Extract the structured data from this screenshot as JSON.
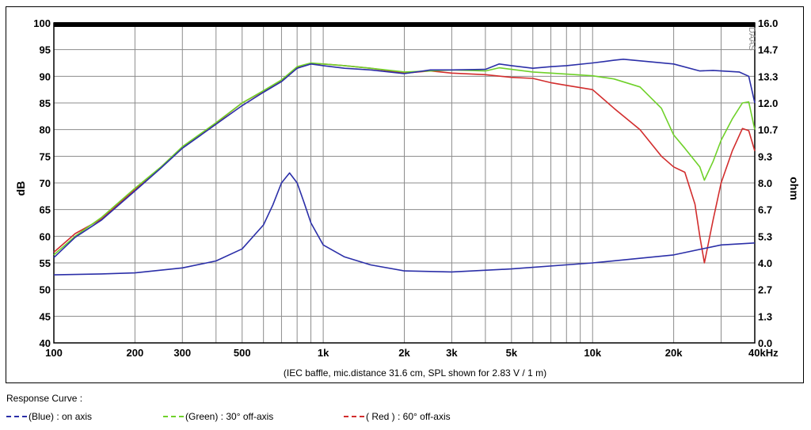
{
  "chart_data": {
    "type": "line",
    "subtitle": "(IEC baffle, mic.distance 31.6 cm, SPL shown for 2.83 V / 1 m)",
    "watermark": "DAAS",
    "x_axis": {
      "scale": "log",
      "range": [
        100,
        40000
      ],
      "tick_values": [
        100,
        200,
        300,
        500,
        1000,
        2000,
        3000,
        5000,
        10000,
        20000,
        40000
      ],
      "tick_labels": [
        "100",
        "200",
        "300",
        "500",
        "1k",
        "2k",
        "3k",
        "5k",
        "10k",
        "20k",
        "40kHz"
      ]
    },
    "y_left": {
      "label": "dB",
      "range": [
        40,
        100
      ],
      "tick_labels": [
        "40",
        "45",
        "50",
        "55",
        "60",
        "65",
        "70",
        "75",
        "80",
        "85",
        "90",
        "95",
        "100"
      ]
    },
    "y_right": {
      "label": "ohm",
      "range": [
        0,
        16
      ],
      "tick_labels": [
        "0.0",
        "1.3",
        "2.7",
        "4.0",
        "5.3",
        "6.7",
        "8.0",
        "9.3",
        "10.7",
        "12.0",
        "13.3",
        "14.7",
        "16.0"
      ]
    },
    "grid": true,
    "series": [
      {
        "name": "(Blue)  : on axis",
        "color": "#2b2fa8",
        "axis": "left",
        "x": [
          100,
          120,
          150,
          200,
          250,
          300,
          400,
          500,
          600,
          700,
          800,
          900,
          1000,
          1200,
          1500,
          2000,
          2500,
          3000,
          4000,
          4500,
          5000,
          6000,
          7000,
          8000,
          10000,
          12000,
          13000,
          15000,
          20000,
          25000,
          28000,
          30000,
          35000,
          38000,
          40000
        ],
        "y": [
          56.0,
          59.8,
          63.0,
          68.5,
          72.8,
          76.5,
          81.0,
          84.5,
          87.0,
          89.0,
          91.5,
          92.3,
          92.0,
          91.5,
          91.2,
          90.5,
          91.2,
          91.2,
          91.3,
          92.3,
          92.0,
          91.5,
          91.8,
          92.0,
          92.5,
          93.0,
          93.2,
          92.9,
          92.3,
          91.0,
          91.1,
          91.0,
          90.8,
          90.0,
          85.0
        ]
      },
      {
        "name": "(Green) : 30° off-axis",
        "color": "#6fd12a",
        "axis": "left",
        "x": [
          100,
          120,
          150,
          200,
          250,
          300,
          400,
          500,
          600,
          700,
          800,
          900,
          1000,
          1200,
          1500,
          2000,
          2500,
          3000,
          4000,
          4500,
          5000,
          6000,
          7000,
          8000,
          10000,
          12000,
          15000,
          18000,
          20000,
          22000,
          25000,
          26000,
          28000,
          30000,
          33000,
          36000,
          38000,
          40000
        ],
        "y": [
          56.5,
          60.0,
          63.5,
          69.0,
          73.0,
          76.8,
          81.3,
          85.0,
          87.3,
          89.3,
          91.8,
          92.5,
          92.3,
          92.0,
          91.5,
          90.8,
          91.0,
          91.2,
          91.0,
          91.6,
          91.3,
          90.8,
          90.6,
          90.4,
          90.1,
          89.5,
          88.0,
          84.0,
          79.0,
          76.5,
          73.0,
          70.5,
          74.0,
          78.0,
          82.0,
          85.0,
          85.2,
          80.0
        ]
      },
      {
        "name": "( Red ) : 60° off-axis",
        "color": "#d22d2d",
        "axis": "left",
        "x": [
          100,
          120,
          150,
          200,
          250,
          300,
          400,
          500,
          600,
          700,
          800,
          900,
          1000,
          1200,
          1500,
          2000,
          2500,
          3000,
          4000,
          5000,
          6000,
          7000,
          8000,
          10000,
          12000,
          15000,
          18000,
          20000,
          22000,
          24000,
          25000,
          26000,
          28000,
          30000,
          33000,
          36000,
          38000,
          40000
        ],
        "y": [
          57.0,
          60.5,
          63.2,
          68.8,
          73.0,
          76.7,
          81.2,
          85.0,
          87.2,
          89.2,
          91.6,
          92.4,
          92.3,
          92.0,
          91.5,
          90.6,
          91.0,
          90.6,
          90.3,
          89.8,
          89.6,
          88.8,
          88.3,
          87.5,
          84.0,
          80.0,
          75.0,
          73.0,
          72.0,
          66.0,
          60.0,
          55.0,
          63.0,
          70.0,
          76.0,
          80.2,
          79.8,
          76.0
        ]
      },
      {
        "name": "impedance",
        "color": "#2b2fa8",
        "axis": "right",
        "x": [
          100,
          150,
          200,
          300,
          400,
          500,
          600,
          650,
          700,
          750,
          800,
          850,
          900,
          1000,
          1200,
          1500,
          2000,
          3000,
          5000,
          10000,
          20000,
          30000,
          40000
        ],
        "y": [
          3.4,
          3.45,
          3.5,
          3.75,
          4.1,
          4.7,
          5.9,
          6.9,
          8.0,
          8.5,
          8.0,
          7.0,
          6.0,
          4.9,
          4.3,
          3.9,
          3.6,
          3.55,
          3.7,
          4.0,
          4.4,
          4.9,
          5.0
        ]
      }
    ]
  },
  "legend": {
    "title": "Response Curve :",
    "items": [
      {
        "label": "(Blue)  : on axis",
        "color": "#2b2fa8"
      },
      {
        "label": "(Green) : 30° off-axis",
        "color": "#6fd12a"
      },
      {
        "label": "( Red ) : 60° off-axis",
        "color": "#d22d2d"
      }
    ]
  }
}
